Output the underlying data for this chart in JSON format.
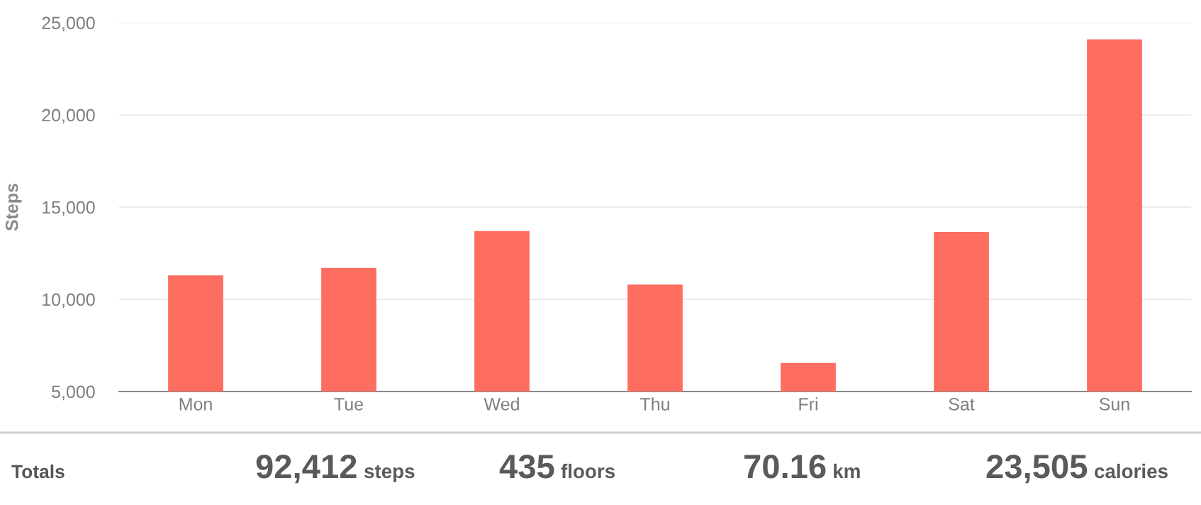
{
  "chart_data": {
    "type": "bar",
    "ylabel": "Steps",
    "categories": [
      "Mon",
      "Tue",
      "Wed",
      "Thu",
      "Fri",
      "Sat",
      "Sun"
    ],
    "values": [
      11300,
      11700,
      13700,
      10800,
      6550,
      13650,
      24100
    ],
    "color": "#fe6e60",
    "ylim": [
      5000,
      25000
    ],
    "yticks": [
      {
        "value": 5000,
        "label": "5,000"
      },
      {
        "value": 10000,
        "label": "10,000"
      },
      {
        "value": 15000,
        "label": "15,000"
      },
      {
        "value": 20000,
        "label": "20,000"
      },
      {
        "value": 25000,
        "label": "25,000"
      }
    ],
    "grid": "y",
    "annotations": [
      "Totals",
      "92,412",
      "steps",
      "435",
      "floors",
      "70.16",
      "km",
      "23,505",
      "calories"
    ]
  }
}
